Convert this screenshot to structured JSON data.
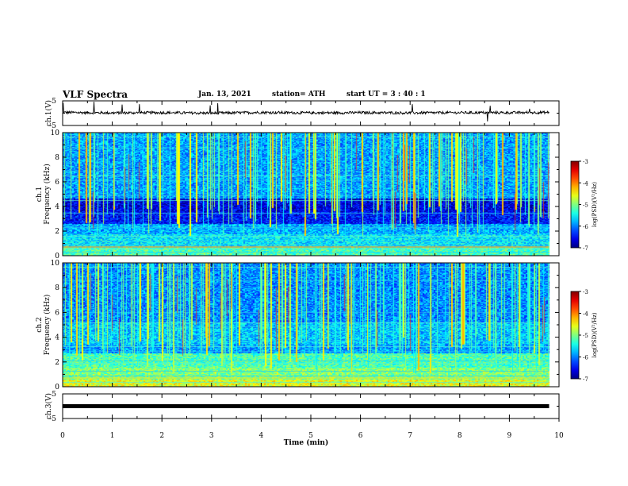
{
  "header": {
    "title": "VLF Spectra",
    "date": "Jan. 13, 2021",
    "station": "station= ATH",
    "start_ut": "start UT = 3 : 40 : 1"
  },
  "chart_data": [
    {
      "type": "line",
      "panel": "ch1-waveform",
      "ylabel": "ch.1(V)",
      "ylim": [
        -5,
        5
      ],
      "yticks": [
        "5",
        "-5"
      ],
      "xlim": [
        0,
        10
      ],
      "series": [
        {
          "values_description_x": "time (min)",
          "x": [
            0,
            1,
            2,
            3,
            4,
            5,
            6,
            7,
            8,
            9,
            9.8
          ],
          "y": [
            0.3,
            0.1,
            0.2,
            0.0,
            0.3,
            0.1,
            0.2,
            0.1,
            0.2,
            0.2,
            0.3
          ]
        }
      ],
      "color": "#000000"
    },
    {
      "type": "heatmap",
      "panel": "ch1-spectrogram",
      "ylabel_line1": "ch.1",
      "ylabel_line2": "Frequency (kHz)",
      "ylim": [
        0,
        10
      ],
      "yticks": [
        "0",
        "2",
        "4",
        "6",
        "8",
        "10"
      ],
      "xlim": [
        0,
        10
      ],
      "data_end_min": 9.8,
      "colorbar": {
        "label": "log(PSD)(V²/Hz)",
        "range": [
          -7,
          -3
        ],
        "ticks": [
          "-3",
          "-4",
          "-5",
          "-6",
          "-7"
        ]
      }
    },
    {
      "type": "heatmap",
      "panel": "ch2-spectrogram",
      "ylabel_line1": "ch.2",
      "ylabel_line2": "Frequency (kHz)",
      "ylim": [
        0,
        10
      ],
      "yticks": [
        "0",
        "2",
        "4",
        "6",
        "8",
        "10"
      ],
      "xlim": [
        0,
        10
      ],
      "data_end_min": 9.8,
      "colorbar": {
        "label": "log(PSD)(V²/Hz)",
        "range": [
          -7,
          -3
        ],
        "ticks": [
          "-3",
          "-4",
          "-5",
          "-6",
          "-7"
        ]
      }
    },
    {
      "type": "line",
      "panel": "ch3-waveform",
      "ylabel": "ch.3(V)",
      "ylim": [
        -5,
        5
      ],
      "yticks": [
        "5",
        "-5"
      ],
      "xlim": [
        0,
        10
      ],
      "xlabel": "Time (min)",
      "xticks": [
        "0",
        "1",
        "2",
        "3",
        "4",
        "5",
        "6",
        "7",
        "8",
        "9",
        "10"
      ],
      "series": [
        {
          "x": [
            0,
            9.8
          ],
          "y": [
            0,
            0
          ]
        }
      ],
      "color": "#000000"
    }
  ]
}
